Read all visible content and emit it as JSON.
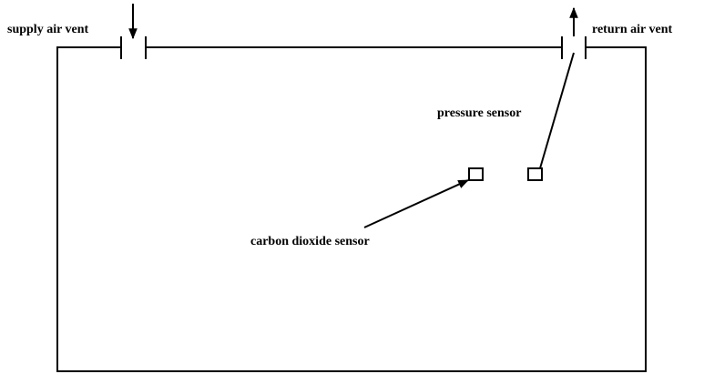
{
  "labels": {
    "supply_vent": "supply air vent",
    "return_vent": "return air vent",
    "pressure_sensor": "pressure sensor",
    "co2_sensor": "carbon dioxide sensor"
  }
}
